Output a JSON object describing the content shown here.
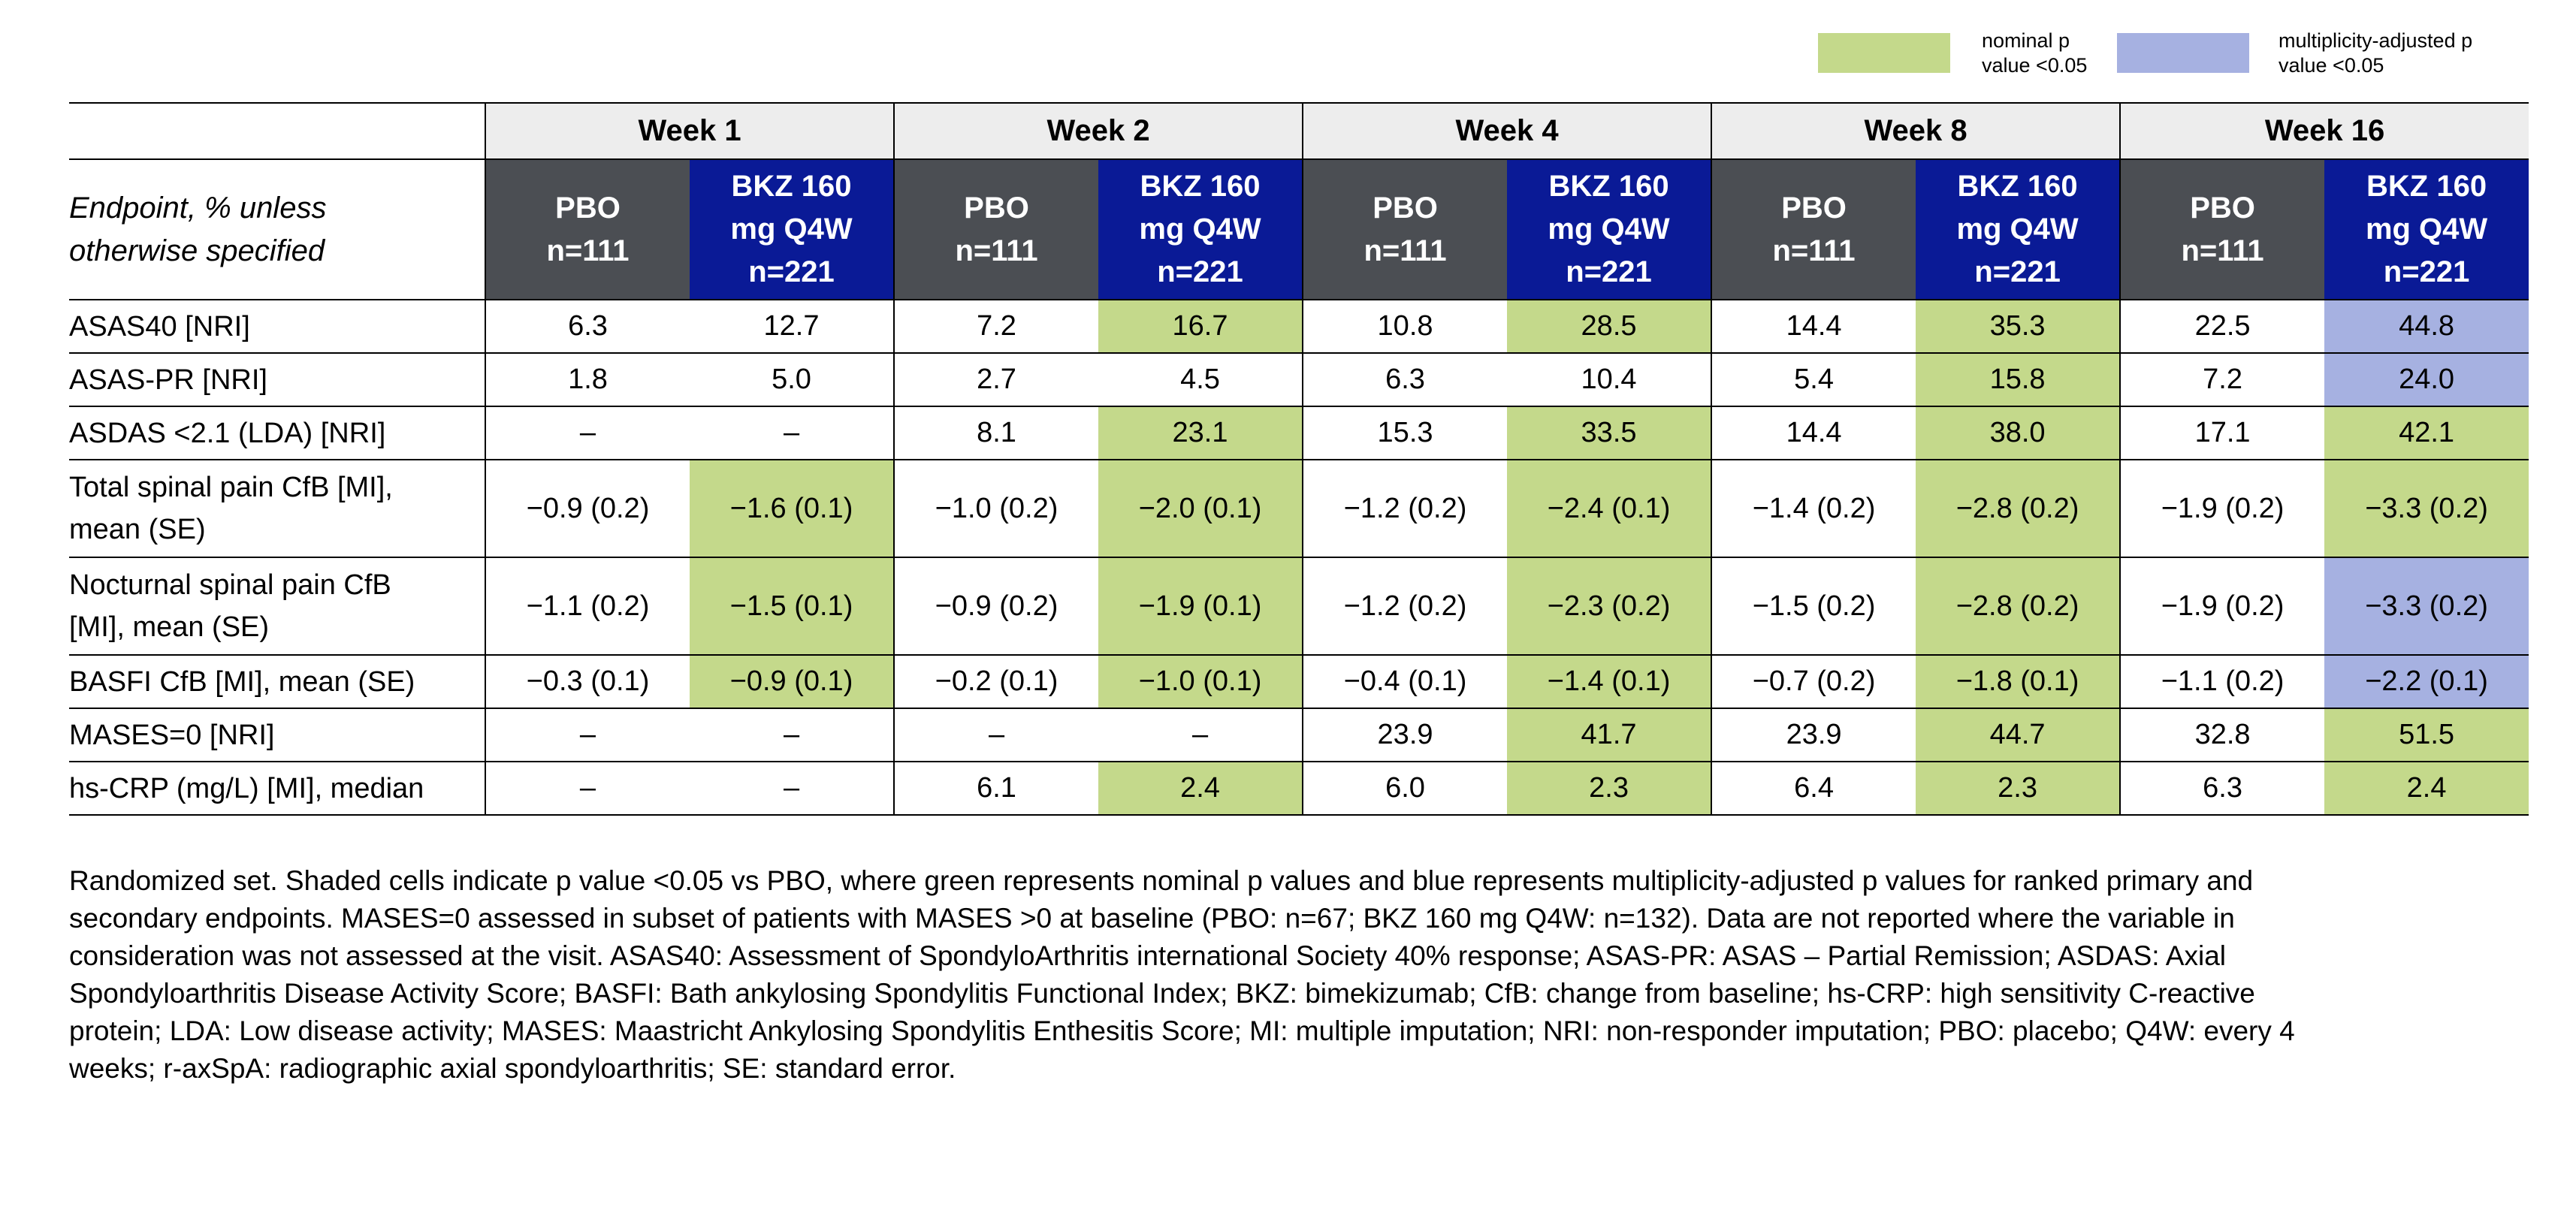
{
  "legend": [
    {
      "label": "nominal p\nvalue <0.05",
      "color": "#c4d98b"
    },
    {
      "label": "multiplicity-adjusted p\nvalue <0.05",
      "color": "#a6b1e1"
    }
  ],
  "table": {
    "column_header": "Endpoint, % unless\notherwise specified",
    "weeks": [
      "Week 1",
      "Week 2",
      "Week 4",
      "Week 8",
      "Week 16"
    ],
    "week_color": "#ededed",
    "arms": [
      {
        "label": "PBO\nn=111",
        "color": "#4b4e53"
      },
      {
        "label": "BKZ 160\nmg Q4W\nn=221",
        "color": "#0a1a96"
      }
    ],
    "rows": [
      {
        "endpoint": "ASAS40 [NRI]",
        "cells": [
          "6.3",
          "12.7",
          "7.2",
          "16.7",
          "10.8",
          "28.5",
          "14.4",
          "35.3",
          "22.5",
          "44.8"
        ],
        "shading": [
          null,
          null,
          null,
          0,
          null,
          0,
          null,
          0,
          null,
          1
        ]
      },
      {
        "endpoint": "ASAS-PR [NRI]",
        "cells": [
          "1.8",
          "5.0",
          "2.7",
          "4.5",
          "6.3",
          "10.4",
          "5.4",
          "15.8",
          "7.2",
          "24.0"
        ],
        "shading": [
          null,
          null,
          null,
          null,
          null,
          null,
          null,
          0,
          null,
          1
        ]
      },
      {
        "endpoint": "ASDAS <2.1 (LDA) [NRI]",
        "cells": [
          "–",
          "–",
          "8.1",
          "23.1",
          "15.3",
          "33.5",
          "14.4",
          "38.0",
          "17.1",
          "42.1"
        ],
        "shading": [
          null,
          null,
          null,
          0,
          null,
          0,
          null,
          0,
          null,
          0
        ]
      },
      {
        "endpoint": "Total spinal pain CfB [MI],\nmean (SE)",
        "cells": [
          "−0.9 (0.2)",
          "−1.6 (0.1)",
          "−1.0 (0.2)",
          "−2.0 (0.1)",
          "−1.2 (0.2)",
          "−2.4 (0.1)",
          "−1.4 (0.2)",
          "−2.8 (0.2)",
          "−1.9 (0.2)",
          "−3.3 (0.2)"
        ],
        "shading": [
          null,
          0,
          null,
          0,
          null,
          0,
          null,
          0,
          null,
          0
        ]
      },
      {
        "endpoint": "Nocturnal spinal pain CfB\n[MI], mean (SE)",
        "cells": [
          "−1.1 (0.2)",
          "−1.5 (0.1)",
          "−0.9 (0.2)",
          "−1.9 (0.1)",
          "−1.2 (0.2)",
          "−2.3 (0.2)",
          "−1.5 (0.2)",
          "−2.8 (0.2)",
          "−1.9 (0.2)",
          "−3.3 (0.2)"
        ],
        "shading": [
          null,
          0,
          null,
          0,
          null,
          0,
          null,
          0,
          null,
          1
        ]
      },
      {
        "endpoint": "BASFI CfB [MI], mean (SE)",
        "cells": [
          "−0.3 (0.1)",
          "−0.9 (0.1)",
          "−0.2 (0.1)",
          "−1.0 (0.1)",
          "−0.4 (0.1)",
          "−1.4 (0.1)",
          "−0.7 (0.2)",
          "−1.8 (0.1)",
          "−1.1 (0.2)",
          "−2.2 (0.1)"
        ],
        "shading": [
          null,
          0,
          null,
          0,
          null,
          0,
          null,
          0,
          null,
          1
        ]
      },
      {
        "endpoint": "MASES=0 [NRI]",
        "cells": [
          "–",
          "–",
          "–",
          "–",
          "23.9",
          "41.7",
          "23.9",
          "44.7",
          "32.8",
          "51.5"
        ],
        "shading": [
          null,
          null,
          null,
          null,
          null,
          0,
          null,
          0,
          null,
          0
        ]
      },
      {
        "endpoint": "hs-CRP (mg/L) [MI], median",
        "cells": [
          "–",
          "–",
          "6.1",
          "2.4",
          "6.0",
          "2.3",
          "6.4",
          "2.3",
          "6.3",
          "2.4"
        ],
        "shading": [
          null,
          null,
          null,
          0,
          null,
          0,
          null,
          0,
          null,
          0
        ]
      }
    ]
  },
  "footnote": "Randomized set. Shaded cells indicate p value <0.05 vs PBO, where green represents nominal p values and blue represents multiplicity-adjusted p values for ranked primary and secondary endpoints. MASES=0 assessed in subset of patients with MASES >0 at baseline (PBO: n=67; BKZ 160 mg Q4W: n=132). Data are not reported where the variable in consideration was not assessed at the visit. ASAS40: Assessment of SpondyloArthritis international Society 40% response; ASAS-PR: ASAS – Partial Remission; ASDAS: Axial Spondyloarthritis Disease Activity Score; BASFI: Bath ankylosing Spondylitis Functional Index; BKZ: bimekizumab; CfB: change from baseline; hs-CRP: high sensitivity C-reactive protein; LDA: Low disease activity; MASES: Maastricht Ankylosing Spondylitis Enthesitis Score; MI: multiple imputation; NRI: non-responder imputation;  PBO: placebo; Q4W: every 4 weeks; r-axSpA: radiographic axial spondyloarthritis; SE: standard error."
}
